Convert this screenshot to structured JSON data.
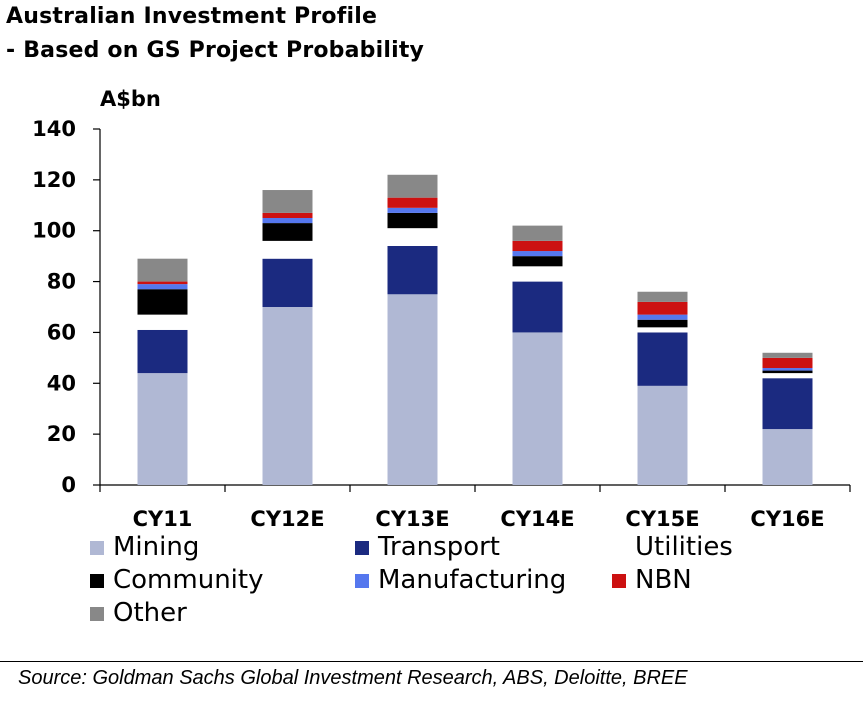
{
  "title_line1": "Australian Investment Profile",
  "title_line2": "- Based on GS Project Probability",
  "source": "Source: Goldman Sachs Global Investment Research, ABS, Deloitte, BREE",
  "chart_data": {
    "type": "bar",
    "stacked": true,
    "ylabel": "A$bn",
    "ylim": [
      0,
      140
    ],
    "yticks": [
      0,
      20,
      40,
      60,
      80,
      100,
      120,
      140
    ],
    "grid": false,
    "legend_position": "bottom",
    "categories": [
      "CY11",
      "CY12E",
      "CY13E",
      "CY14E",
      "CY15E",
      "CY16E"
    ],
    "series": [
      {
        "name": "Mining",
        "color": "#b0b8d4",
        "values": [
          44,
          70,
          75,
          60,
          39,
          22
        ]
      },
      {
        "name": "Transport",
        "color": "#1b2a80",
        "values": [
          17,
          19,
          19,
          20,
          21,
          20
        ]
      },
      {
        "name": "Utilities",
        "color": "#ffffff",
        "values": [
          6,
          7,
          7,
          6,
          2,
          2
        ]
      },
      {
        "name": "Community",
        "color": "#000000",
        "values": [
          10,
          7,
          6,
          4,
          3,
          1
        ]
      },
      {
        "name": "Manufacturing",
        "color": "#5577ee",
        "values": [
          2,
          2,
          2,
          2,
          2,
          1
        ]
      },
      {
        "name": "NBN",
        "color": "#cc1111",
        "values": [
          1,
          2,
          4,
          4,
          5,
          4
        ]
      },
      {
        "name": "Other",
        "color": "#888888",
        "values": [
          9,
          9,
          9,
          6,
          4,
          2
        ]
      }
    ]
  }
}
